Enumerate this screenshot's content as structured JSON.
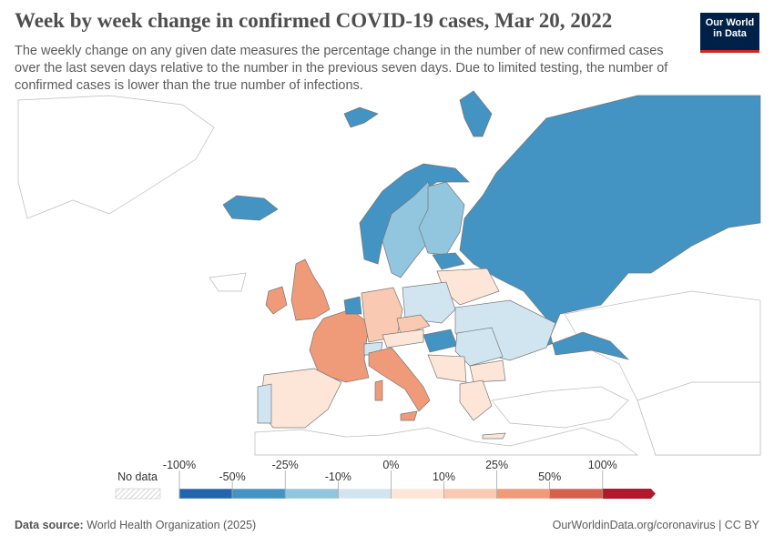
{
  "header": {
    "title": "Week by week change in confirmed COVID-19 cases, Mar 20, 2022",
    "subtitle": "The weekly change on any given date measures the percentage change in the number of new confirmed cases over the last seven days relative to the number in the previous seven days. Due to limited testing, the number of confirmed cases is lower than the true number of infections.",
    "logo": [
      "Our World",
      "in Data"
    ]
  },
  "legend": {
    "no_data": "No data",
    "ticks": [
      {
        "value": -100,
        "label": "-100%"
      },
      {
        "value": -50,
        "label": "-50%"
      },
      {
        "value": -25,
        "label": "-25%"
      },
      {
        "value": -10,
        "label": "-10%"
      },
      {
        "value": 0,
        "label": "0%"
      },
      {
        "value": 10,
        "label": "10%"
      },
      {
        "value": 25,
        "label": "25%"
      },
      {
        "value": 50,
        "label": "50%"
      },
      {
        "value": 100,
        "label": "100%"
      }
    ],
    "colors": [
      "#2166ac",
      "#4393c3",
      "#92c5de",
      "#d1e5f0",
      "#fde6d8",
      "#f9c9b1",
      "#ef9a78",
      "#d6604d",
      "#b2182b"
    ]
  },
  "footer": {
    "source_label": "Data source:",
    "source": "World Health Organization (2025)",
    "url": "OurWorldinData.org/coronavirus | CC BY"
  }
}
